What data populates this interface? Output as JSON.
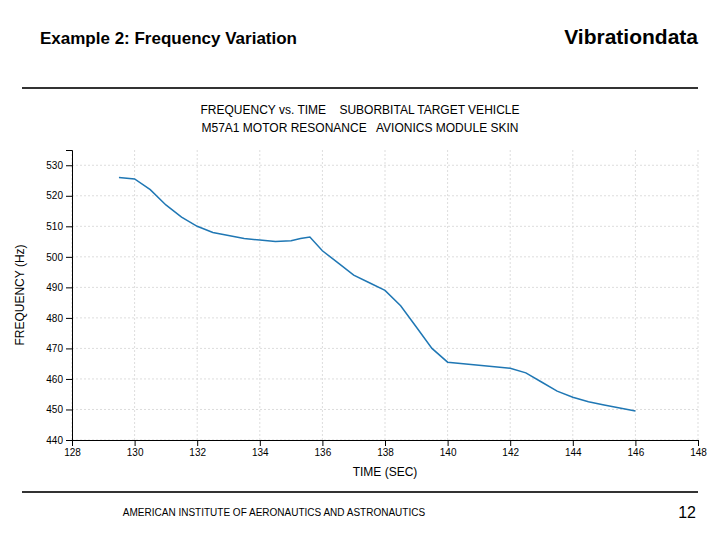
{
  "chart_data": {
    "type": "line",
    "title": "FREQUENCY vs. TIME    SUBORBITAL TARGET VEHICLE",
    "subtitle": "M57A1 MOTOR RESONANCE   AVIONICS MODULE SKIN",
    "annotations": [
      "Example 2: Frequency Variation",
      "Vibrationdata",
      "AMERICAN INSTITUTE OF AERONAUTICS AND ASTRONAUTICS",
      "12"
    ],
    "xlabel": "TIME (SEC)",
    "ylabel": "FREQUENCY (Hz)",
    "x": [
      129.5,
      130.0,
      130.5,
      131.0,
      131.5,
      132.0,
      132.5,
      133.0,
      133.5,
      134.0,
      134.5,
      135.0,
      135.3,
      135.6,
      136.0,
      136.5,
      137.0,
      137.5,
      138.0,
      138.5,
      139.0,
      139.5,
      140.0,
      140.5,
      141.0,
      141.5,
      142.0,
      142.5,
      143.0,
      143.5,
      144.0,
      144.5,
      145.0,
      145.5,
      146.0
    ],
    "values": [
      526.0,
      525.5,
      522.0,
      517.0,
      513.0,
      510.0,
      508.0,
      507.0,
      506.0,
      505.5,
      505.0,
      505.3,
      506.0,
      506.5,
      502.0,
      498.0,
      494.0,
      491.5,
      489.0,
      484.0,
      477.0,
      470.0,
      465.5,
      465.0,
      464.5,
      464.0,
      463.5,
      462.0,
      459.0,
      456.0,
      454.0,
      452.5,
      451.5,
      450.5,
      449.5
    ],
    "xlim": [
      128,
      148
    ],
    "ylim": [
      440,
      535
    ],
    "xticks": [
      128,
      130,
      132,
      134,
      136,
      138,
      140,
      142,
      144,
      146,
      148
    ],
    "yticks": [
      440,
      450,
      460,
      470,
      480,
      490,
      500,
      510,
      520,
      530
    ],
    "grid": true
  }
}
